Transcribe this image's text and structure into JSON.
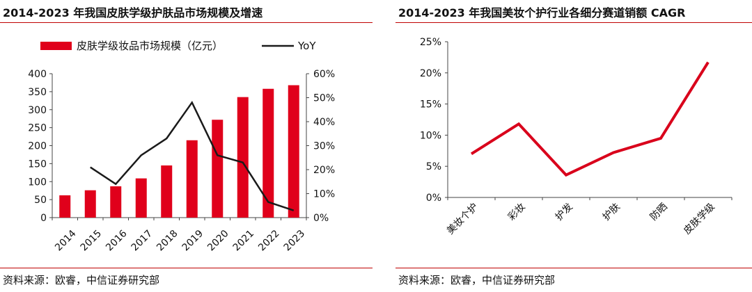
{
  "source_label": "资料来源：欧睿，中信证券研究部",
  "colors": {
    "bar": "#e0001b",
    "line": "#1a1a1a",
    "accent_line": "#d9001b",
    "rule": "#c00000",
    "axis": "#444444"
  },
  "chart_data": [
    {
      "type": "bar",
      "title": "2014-2023 年我国皮肤学级护肤品市场规模及增速",
      "categories": [
        "2014",
        "2015",
        "2016",
        "2017",
        "2018",
        "2019",
        "2020",
        "2021",
        "2022",
        "2023"
      ],
      "series": [
        {
          "name": "皮肤学级妆品市场规模（亿元）",
          "type": "bar",
          "axis": "left",
          "values": [
            62,
            76,
            87,
            109,
            145,
            215,
            272,
            335,
            358,
            368
          ]
        },
        {
          "name": "YoY",
          "type": "line",
          "axis": "right",
          "values": [
            null,
            0.21,
            0.14,
            0.26,
            0.33,
            0.48,
            0.26,
            0.23,
            0.065,
            0.03
          ]
        }
      ],
      "yleft_ticks": [
        "0",
        "50",
        "100",
        "150",
        "200",
        "250",
        "300",
        "350",
        "400"
      ],
      "yleft_lim": [
        0,
        400
      ],
      "yright_ticks": [
        "0%",
        "10%",
        "20%",
        "30%",
        "40%",
        "50%",
        "60%"
      ],
      "yright_lim": [
        0,
        0.6
      ],
      "legend_position": "top"
    },
    {
      "type": "line",
      "title": "2014-2023 年我国美妆个护行业各细分赛道销额 CAGR",
      "categories": [
        "美妆个护",
        "彩妆",
        "护发",
        "护肤",
        "防晒",
        "皮肤学级"
      ],
      "values": [
        0.07,
        0.118,
        0.036,
        0.072,
        0.095,
        0.217
      ],
      "y_ticks": [
        "0%",
        "5%",
        "10%",
        "15%",
        "20%",
        "25%"
      ],
      "ylim": [
        0,
        0.25
      ]
    }
  ]
}
